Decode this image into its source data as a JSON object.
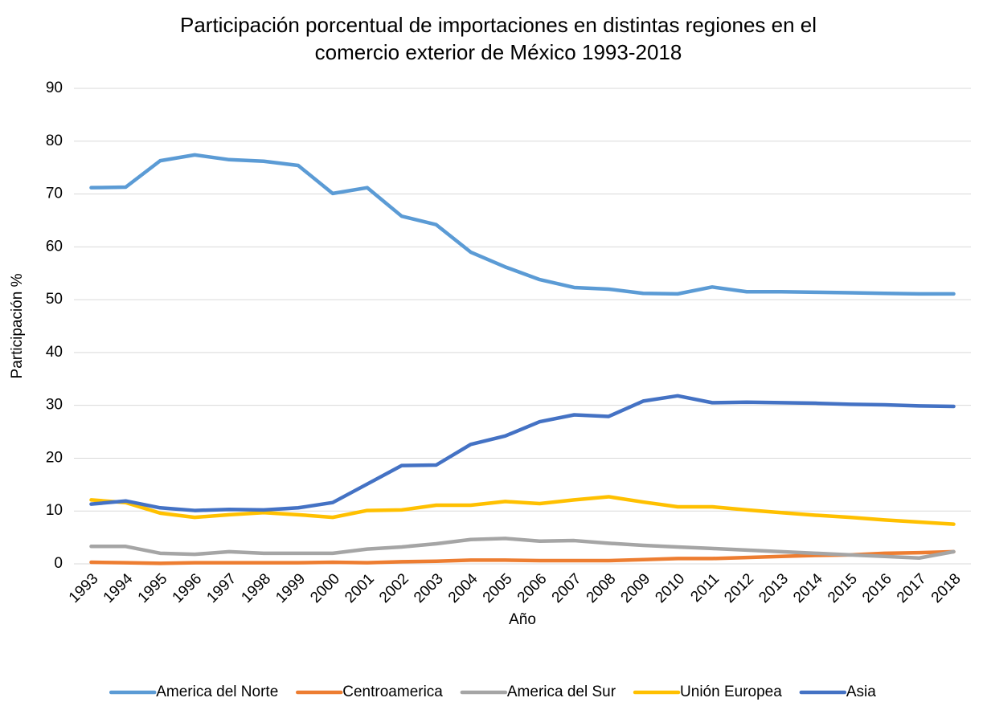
{
  "chart_data": {
    "type": "line",
    "title": "Participación porcentual de importaciones en distintas regiones en el comercio exterior de México 1993-2018",
    "x_label": "Año",
    "y_label": "Participación %",
    "categories": [
      "1993",
      "1994",
      "1995",
      "1996",
      "1997",
      "1998",
      "1999",
      "2000",
      "2001",
      "2002",
      "2003",
      "2004",
      "2005",
      "2006",
      "2007",
      "2008",
      "2009",
      "2010",
      "2011",
      "2012",
      "2013",
      "2014",
      "2015",
      "2016",
      "2017",
      "2018"
    ],
    "series": [
      {
        "name": "America del Norte",
        "color": "#5b9bd5",
        "values": [
          71.2,
          71.3,
          76.3,
          77.4,
          76.5,
          76.2,
          75.4,
          70.1,
          71.2,
          65.8,
          64.2,
          59.0,
          56.2,
          53.8,
          52.3,
          52.0,
          51.2,
          51.1,
          52.4,
          51.5,
          51.5,
          51.4,
          51.3,
          51.2,
          51.1,
          51.1
        ]
      },
      {
        "name": "Centroamerica",
        "color": "#ed7d31",
        "values": [
          0.3,
          0.2,
          0.1,
          0.2,
          0.2,
          0.2,
          0.2,
          0.3,
          0.2,
          0.4,
          0.5,
          0.7,
          0.7,
          0.6,
          0.6,
          0.6,
          0.8,
          1.0,
          1.0,
          1.2,
          1.4,
          1.6,
          1.7,
          2.0,
          2.1,
          2.3
        ]
      },
      {
        "name": "America del Sur",
        "color": "#a5a5a5",
        "values": [
          3.3,
          3.3,
          2.0,
          1.8,
          2.3,
          2.0,
          2.0,
          2.0,
          2.8,
          3.2,
          3.8,
          4.6,
          4.8,
          4.3,
          4.4,
          3.9,
          3.5,
          3.2,
          2.9,
          2.6,
          2.3,
          2.0,
          1.7,
          1.4,
          1.1,
          2.3
        ]
      },
      {
        "name": "Unión Europea",
        "color": "#ffc000",
        "values": [
          12.1,
          11.6,
          9.6,
          8.8,
          9.3,
          9.7,
          9.3,
          8.8,
          10.1,
          10.2,
          11.1,
          11.1,
          11.8,
          11.4,
          12.1,
          12.7,
          11.7,
          10.8,
          10.8,
          10.2,
          9.7,
          9.2,
          8.8,
          8.3,
          7.9,
          7.5
        ]
      },
      {
        "name": "Asia",
        "color": "#4472c4",
        "values": [
          11.3,
          11.9,
          10.6,
          10.1,
          10.3,
          10.2,
          10.6,
          11.6,
          15.1,
          18.6,
          18.7,
          22.6,
          24.2,
          26.9,
          28.2,
          27.9,
          30.8,
          31.8,
          30.5,
          30.6,
          30.5,
          30.4,
          30.2,
          30.1,
          29.9,
          29.8
        ]
      }
    ],
    "ylim": [
      0,
      90
    ],
    "yticks": [
      0,
      10,
      20,
      30,
      40,
      50,
      60,
      70,
      80,
      90
    ],
    "grid": true,
    "legend": "bottom"
  }
}
